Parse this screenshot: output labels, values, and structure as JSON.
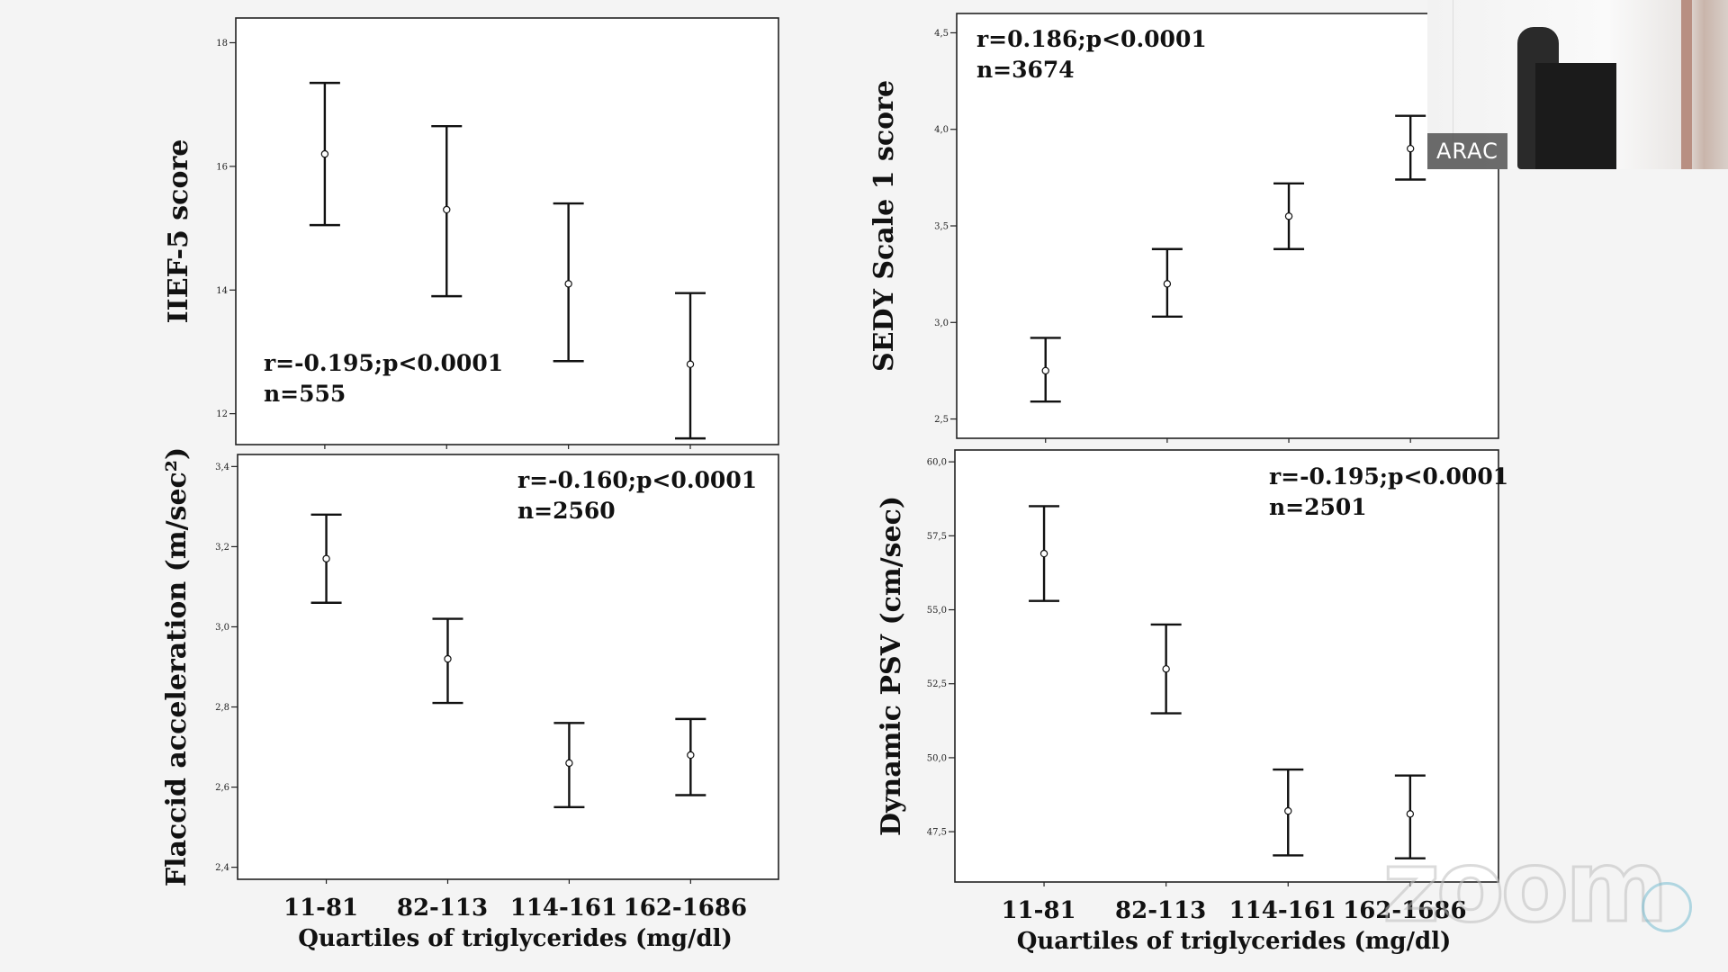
{
  "chart_data": [
    {
      "type": "errorbar",
      "ylabel": "IIEF-5 score",
      "annotation": [
        "r=-0.195;p<0.0001",
        "n=555"
      ],
      "categories": [
        "11-81",
        "82-113",
        "114-161",
        "162-1686"
      ],
      "series": [
        {
          "name": "mean",
          "values": [
            16.2,
            15.3,
            14.1,
            12.8
          ]
        },
        {
          "name": "lower",
          "values": [
            15.05,
            13.9,
            12.85,
            11.6
          ]
        },
        {
          "name": "upper",
          "values": [
            17.35,
            16.65,
            15.4,
            13.95
          ]
        }
      ],
      "ylim": [
        11.5,
        18.4
      ],
      "yticks": [
        "12",
        "14",
        "16",
        "18"
      ]
    },
    {
      "type": "errorbar",
      "ylabel": "SEDY Scale 1 score",
      "annotation": [
        "r=0.186;p<0.0001",
        "n=3674"
      ],
      "categories": [
        "11-81",
        "82-113",
        "114-161",
        "162-1686"
      ],
      "series": [
        {
          "name": "mean",
          "values": [
            2.75,
            3.2,
            3.55,
            3.9
          ]
        },
        {
          "name": "lower",
          "values": [
            2.59,
            3.03,
            3.38,
            3.74
          ]
        },
        {
          "name": "upper",
          "values": [
            2.92,
            3.38,
            3.72,
            4.07
          ]
        }
      ],
      "ylim": [
        2.4,
        4.6
      ],
      "yticks": [
        "2,5",
        "3,0",
        "3,5",
        "4,0",
        "4,5"
      ]
    },
    {
      "type": "errorbar",
      "ylabel": "Flaccid acceleration (m/sec²)",
      "xlabel": "Quartiles of triglycerides (mg/dl)",
      "annotation": [
        "r=-0.160;p<0.0001",
        "n=2560"
      ],
      "categories": [
        "11-81",
        "82-113",
        "114-161",
        "162-1686"
      ],
      "series": [
        {
          "name": "mean",
          "values": [
            3.17,
            2.92,
            2.66,
            2.68
          ]
        },
        {
          "name": "lower",
          "values": [
            3.06,
            2.81,
            2.55,
            2.58
          ]
        },
        {
          "name": "upper",
          "values": [
            3.28,
            3.02,
            2.76,
            2.77
          ]
        }
      ],
      "ylim": [
        2.37,
        3.43
      ],
      "yticks": [
        "2,4",
        "2,6",
        "2,8",
        "3,0",
        "3,2",
        "3,4"
      ]
    },
    {
      "type": "errorbar",
      "ylabel": "Dynamic PSV (cm/sec)",
      "xlabel": "Quartiles of triglycerides (mg/dl)",
      "annotation": [
        "r=-0.195;p<0.0001",
        "n=2501"
      ],
      "categories": [
        "11-81",
        "82-113",
        "114-161",
        "162-1686"
      ],
      "series": [
        {
          "name": "mean",
          "values": [
            56.9,
            53.0,
            48.2,
            48.1
          ]
        },
        {
          "name": "lower",
          "values": [
            55.3,
            51.5,
            46.7,
            46.6
          ]
        },
        {
          "name": "upper",
          "values": [
            58.5,
            54.5,
            49.6,
            49.4
          ]
        }
      ],
      "ylim": [
        45.8,
        60.4
      ],
      "yticks": [
        "47,5",
        "50,0",
        "52,5",
        "55,0",
        "57,5",
        "60,0"
      ]
    }
  ],
  "overlay": {
    "speaker_name": "ARAC",
    "watermark": "zoom",
    "colors": {
      "background": "#f4f4f4",
      "plot_bg": "#ffffff",
      "ink": "#111111"
    }
  }
}
